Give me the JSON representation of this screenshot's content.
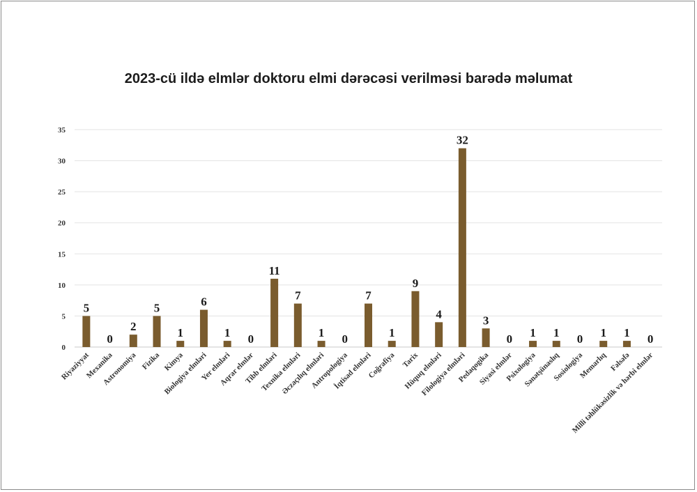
{
  "chart_data": {
    "type": "bar",
    "title": "2023-cü ildə elmlər doktoru elmi dərəcəsi verilməsi barədə məlumat",
    "xlabel": "",
    "ylabel": "",
    "ylim": [
      0,
      35
    ],
    "yticks": [
      0,
      5,
      10,
      15,
      20,
      25,
      30,
      35
    ],
    "grid": true,
    "bar_color": "#7a5c2e",
    "categories": [
      "Riyaziyyat",
      "Mexanika",
      "Astronomiya",
      "Fizika",
      "Kimya",
      "Biologiya elmləri",
      "Yer elmləri",
      "Aqrar elmlər",
      "Tibb elmləri",
      "Texnika elmləri",
      "Əczaçılıq elmləri",
      "Antropologiya",
      "İqtisad elmləri",
      "Coğrafiya",
      "Tarix",
      "Hüquq elmləri",
      "Filologiya elmləri",
      "Pedaqogika",
      "Siyasi elmlər",
      "Psixologiya",
      "Sənətşünaslıq",
      "Sosiologiya",
      "Memarlıq",
      "Fəlsəfə",
      "Milli təhlükəsizlik və hərbi elmlər"
    ],
    "values": [
      5,
      0,
      2,
      5,
      1,
      6,
      1,
      0,
      11,
      7,
      1,
      0,
      7,
      1,
      9,
      4,
      32,
      3,
      0,
      1,
      1,
      0,
      1,
      1,
      0
    ]
  }
}
